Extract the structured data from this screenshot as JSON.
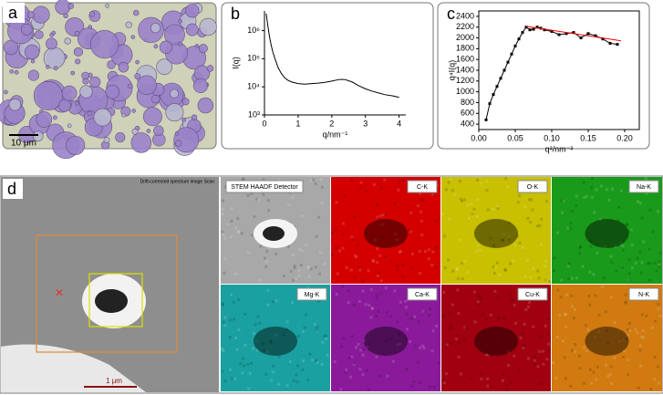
{
  "chart_data": [
    {
      "type": "line",
      "label": "b",
      "xlabel": "q/nm⁻¹",
      "ylabel": "I(q)",
      "log_y": true,
      "box": false,
      "xlim": [
        0,
        4.2
      ],
      "xticks": [
        0,
        1,
        2,
        3,
        4
      ],
      "ylim": [
        1000,
        5000000
      ],
      "yticks": [
        {
          "value": 1000,
          "label": "10³"
        },
        {
          "value": 10000,
          "label": "10⁴"
        },
        {
          "value": 100000,
          "label": "10⁵"
        },
        {
          "value": 1000000,
          "label": "10⁶"
        }
      ],
      "series": [
        {
          "color": "#000000",
          "marker": "none",
          "x": [
            0.05,
            0.1,
            0.15,
            0.2,
            0.25,
            0.3,
            0.35,
            0.4,
            0.5,
            0.6,
            0.7,
            0.8,
            1.0,
            1.2,
            1.4,
            1.6,
            1.8,
            2.0,
            2.2,
            2.3,
            2.4,
            2.6,
            2.8,
            3.0,
            3.2,
            3.4,
            3.6,
            3.8,
            4.0
          ],
          "values": [
            4000000,
            1500000,
            600000,
            300000,
            170000,
            110000,
            75000,
            50000,
            30000,
            21000,
            17000,
            15000,
            13000,
            12500,
            13000,
            13500,
            14500,
            16000,
            18000,
            18500,
            18000,
            15000,
            11000,
            8500,
            7000,
            6000,
            5200,
            4800,
            4200
          ]
        }
      ]
    },
    {
      "type": "line",
      "label": "c",
      "xlabel": "q²/nm⁻²",
      "ylabel": "q⁴I(q)",
      "log_y": false,
      "box": true,
      "xlim": [
        0,
        0.22
      ],
      "xticks": [
        {
          "value": 0,
          "label": "0.00"
        },
        {
          "value": 0.05,
          "label": "0.05"
        },
        {
          "value": 0.1,
          "label": "0.10"
        },
        {
          "value": 0.15,
          "label": "0.15"
        },
        {
          "value": 0.2,
          "label": "0.20"
        }
      ],
      "ylim": [
        300,
        2500
      ],
      "yticks": [
        400,
        600,
        800,
        1000,
        1200,
        1400,
        1600,
        1800,
        2000,
        2200,
        2400
      ],
      "series": [
        {
          "color": "#000000",
          "marker": "square",
          "x": [
            0.01,
            0.015,
            0.02,
            0.025,
            0.03,
            0.035,
            0.04,
            0.045,
            0.05,
            0.055,
            0.06,
            0.065,
            0.07,
            0.075,
            0.08,
            0.085,
            0.09,
            0.1,
            0.11,
            0.12,
            0.13,
            0.14,
            0.15,
            0.16,
            0.17,
            0.18,
            0.19
          ],
          "values": [
            480,
            780,
            950,
            1100,
            1250,
            1400,
            1550,
            1700,
            1850,
            1980,
            2100,
            2200,
            2150,
            2160,
            2200,
            2180,
            2150,
            2120,
            2060,
            2080,
            2100,
            2000,
            2080,
            2040,
            1980,
            1900,
            1880
          ]
        },
        {
          "color": "#ff0000",
          "marker": "none",
          "x": [
            0.065,
            0.195
          ],
          "values": [
            2215,
            1945
          ]
        }
      ]
    }
  ],
  "panels": {
    "a": {
      "label": "a",
      "scale_bar": "10 μm"
    },
    "d": {
      "label": "d",
      "caption": "Drift-corrected spectrum image Scan",
      "scale_bar": "1 μm",
      "maps": [
        {
          "label": "STEM HAADF Detector",
          "color": "#a8a8a8"
        },
        {
          "label": "C-K",
          "color": "#d40000"
        },
        {
          "label": "O-K",
          "color": "#c8c000"
        },
        {
          "label": "Na-K",
          "color": "#1a9a1a"
        },
        {
          "label": "Mg-K",
          "color": "#1aa0a0"
        },
        {
          "label": "Ca-K",
          "color": "#8a1a9a"
        },
        {
          "label": "Cu-K",
          "color": "#a00010"
        },
        {
          "label": "N-K",
          "color": "#d07a10"
        }
      ]
    }
  }
}
